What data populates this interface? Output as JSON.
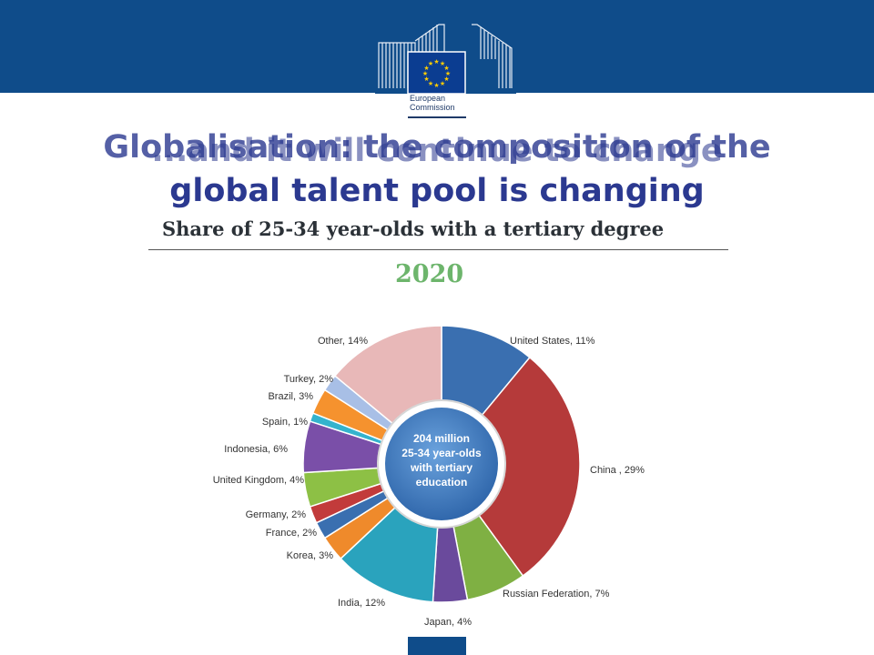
{
  "header": {
    "org_line1": "European",
    "org_line2": "Commission"
  },
  "slide": {
    "title_line1": "Globalisation: the composition of the",
    "title_line1_overlap": "...and it will continue to change",
    "title_line2": "global talent pool is changing"
  },
  "chart_data": {
    "type": "pie",
    "title": "Share of 25-34 year-olds with a tertiary degree",
    "subtitle": "2020",
    "center_label": [
      "204 million",
      "25-34 year-olds",
      "with tertiary",
      "education"
    ],
    "slices": [
      {
        "label": "United States, 11%",
        "value": 11,
        "color": "#3a6fb0"
      },
      {
        "label": "China , 29%",
        "value": 29,
        "color": "#b53a3a"
      },
      {
        "label": "Russian Federation, 7%",
        "value": 7,
        "color": "#7fb043"
      },
      {
        "label": "Japan, 4%",
        "value": 4,
        "color": "#6a4a9c"
      },
      {
        "label": "India, 12%",
        "value": 12,
        "color": "#2aa3bd"
      },
      {
        "label": "Korea, 3%",
        "value": 3,
        "color": "#ef8a2b"
      },
      {
        "label": "France, 2%",
        "value": 2,
        "color": "#3a6fb0"
      },
      {
        "label": "Germany, 2%",
        "value": 2,
        "color": "#c23b3b"
      },
      {
        "label": "United Kingdom, 4%",
        "value": 4,
        "color": "#8dc045"
      },
      {
        "label": "Indonesia, 6%",
        "value": 6,
        "color": "#7a4fa8"
      },
      {
        "label": "Spain, 1%",
        "value": 1,
        "color": "#34b3cd"
      },
      {
        "label": "Brazil, 3%",
        "value": 3,
        "color": "#f5922e"
      },
      {
        "label": "Turkey, 2%",
        "value": 2,
        "color": "#a8bfe6"
      },
      {
        "label": "Other, 14%",
        "value": 14,
        "color": "#e8b8b8"
      }
    ]
  }
}
